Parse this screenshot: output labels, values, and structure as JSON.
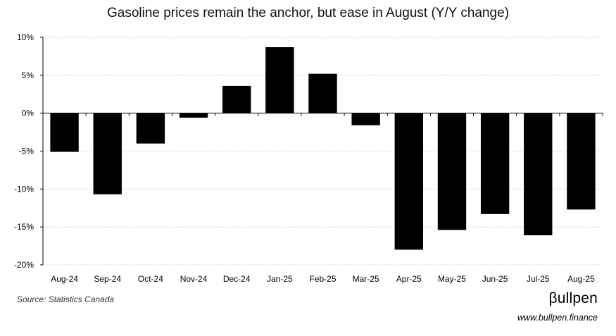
{
  "chart_data": {
    "type": "bar",
    "title": "Gasoline prices remain the anchor, but ease in August (Y/Y change)",
    "categories": [
      "Aug-24",
      "Sep-24",
      "Oct-24",
      "Nov-24",
      "Dec-24",
      "Jan-25",
      "Feb-25",
      "Mar-25",
      "Apr-25",
      "May-25",
      "Jun-25",
      "Jul-25",
      "Aug-25"
    ],
    "values": [
      -5.1,
      -10.7,
      -4.0,
      -0.6,
      3.6,
      8.7,
      5.2,
      -1.6,
      -18.0,
      -15.4,
      -13.3,
      -16.1,
      -12.7
    ],
    "ylim": [
      -20,
      10
    ],
    "yticks": [
      "10%",
      "5%",
      "0%",
      "-5%",
      "-10%",
      "-15%",
      "-20%"
    ],
    "grid": true,
    "bar_color": "#000000"
  },
  "footer": {
    "source": "Source: Statistics Canada",
    "brand": "βullpen",
    "url": "www.bullpen.finance"
  }
}
